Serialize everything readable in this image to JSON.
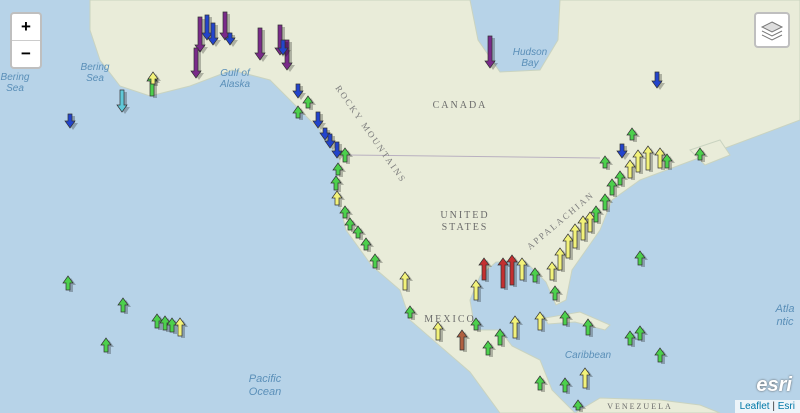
{
  "map": {
    "zoom_in": "+",
    "zoom_out": "−",
    "labels": {
      "bering_sea": [
        "Bering",
        "Sea"
      ],
      "bering_sea_west": [
        "Bering",
        "Sea"
      ],
      "gulf_of_alaska": [
        "Gulf of",
        "Alaska"
      ],
      "hudson_bay": [
        "Hudson",
        "Bay"
      ],
      "canada": "CANADA",
      "rocky_mountains": "ROCKY MOUNTAINS",
      "united_states": [
        "UNITED",
        "STATES"
      ],
      "appalachian": "APPALACHIAN",
      "mexico": "MEXICO",
      "caribbean": "Caribbean",
      "pacific_ocean": [
        "Pacific",
        "Ocean"
      ],
      "atlantic": [
        "Atla",
        "ntic"
      ],
      "venezuela": "VENEZUELA"
    },
    "logo": "esri",
    "attribution": {
      "leaflet": "Leaflet",
      "separator": "|",
      "esri": "Esri"
    }
  }
}
